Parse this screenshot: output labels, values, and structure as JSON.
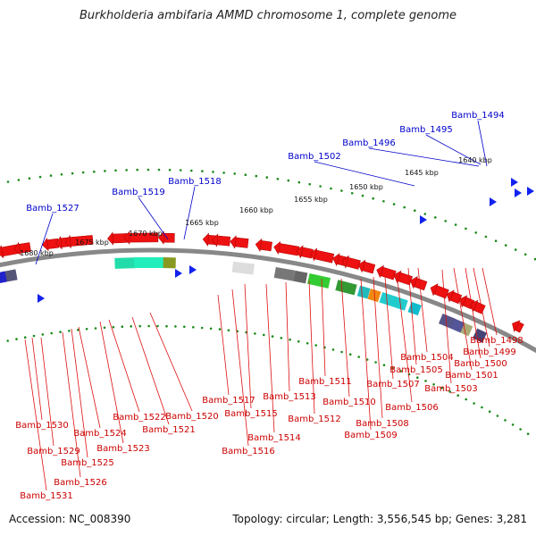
{
  "title": "Burkholderia ambifaria AMMD chromosome 1, complete genome",
  "footer": {
    "accession": "Accession: NC_008390",
    "summary": "Topology: circular; Length: 3,556,545 bp; Genes: 3,281"
  },
  "colors": {
    "forward_label": "#0000cc",
    "reverse_label": "#cc0000",
    "tick": "#1a8a1a",
    "backbone": "#888888"
  },
  "scale_labels": [
    "1640 kbp",
    "1645 kbp",
    "1650 kbp",
    "1655 kbp",
    "1660 kbp",
    "1665 kbp",
    "1670 kbp",
    "1675 kbp",
    "1680 kbp"
  ],
  "forward_genes": [
    "Bamb_1494",
    "Bamb_1495",
    "Bamb_1496",
    "Bamb_1502",
    "Bamb_1518",
    "Bamb_1519",
    "Bamb_1527"
  ],
  "reverse_genes": [
    "Bamb_1498",
    "Bamb_1499",
    "Bamb_1500",
    "Bamb_1501",
    "Bamb_1503",
    "Bamb_1504",
    "Bamb_1505",
    "Bamb_1506",
    "Bamb_1507",
    "Bamb_1508",
    "Bamb_1509",
    "Bamb_1510",
    "Bamb_1511",
    "Bamb_1512",
    "Bamb_1513",
    "Bamb_1514",
    "Bamb_1515",
    "Bamb_1516",
    "Bamb_1517",
    "Bamb_1520",
    "Bamb_1521",
    "Bamb_1522",
    "Bamb_1523",
    "Bamb_1524",
    "Bamb_1525",
    "Bamb_1526",
    "Bamb_1529",
    "Bamb_1530",
    "Bamb_1531"
  ]
}
